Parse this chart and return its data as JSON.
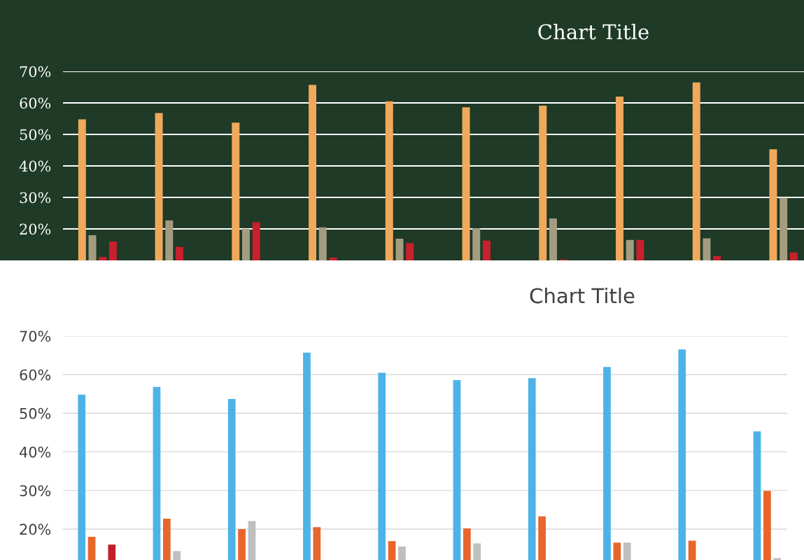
{
  "chart_data": [
    {
      "type": "bar",
      "title": "Chart Title",
      "categories": [
        null,
        null,
        null,
        null,
        null,
        null,
        null,
        null,
        null,
        null
      ],
      "ylim": [
        10,
        70
      ],
      "yticks": [
        {
          "value": 20,
          "label": "20%"
        },
        {
          "value": 30,
          "label": "30%"
        },
        {
          "value": 40,
          "label": "40%"
        },
        {
          "value": 50,
          "label": "50%"
        },
        {
          "value": 60,
          "label": "60%"
        },
        {
          "value": 70,
          "label": "70%"
        }
      ],
      "grid": "y",
      "series": [
        {
          "color": "#f0a85c",
          "values": [
            54.8,
            56.8,
            53.7,
            65.7,
            60.5,
            58.6,
            59.1,
            62.0,
            66.5,
            45.3
          ]
        },
        {
          "color": "#a39c80",
          "values": [
            18.0,
            22.7,
            20.0,
            20.5,
            16.9,
            20.2,
            23.3,
            16.5,
            17.0,
            29.9
          ]
        },
        {
          "color": "#c8202c",
          "values": [
            11.1,
            14.3,
            22.1,
            10.9,
            15.5,
            16.3,
            10.3,
            16.5,
            11.4,
            12.5
          ]
        },
        {
          "color": "#c8202c",
          "values": [
            16.0,
            null,
            null,
            null,
            null,
            null,
            null,
            null,
            null,
            null
          ]
        }
      ]
    },
    {
      "type": "bar",
      "title": "Chart Title",
      "categories": [
        null,
        null,
        null,
        null,
        null,
        null,
        null,
        null,
        null,
        null
      ],
      "ylim": [
        12.0,
        70
      ],
      "yticks": [
        {
          "value": 20,
          "label": "20%"
        },
        {
          "value": 30,
          "label": "30%"
        },
        {
          "value": 40,
          "label": "40%"
        },
        {
          "value": 50,
          "label": "50%"
        },
        {
          "value": 60,
          "label": "60%"
        },
        {
          "value": 70,
          "label": "70%"
        }
      ],
      "grid": "y",
      "series": [
        {
          "color": "#4db3e6",
          "values": [
            54.8,
            56.8,
            53.7,
            65.7,
            60.5,
            58.6,
            59.1,
            62.0,
            66.5,
            45.3
          ]
        },
        {
          "color": "#e8662c",
          "values": [
            18.0,
            22.7,
            20.0,
            20.5,
            16.9,
            20.2,
            23.3,
            16.5,
            17.0,
            29.9
          ]
        },
        {
          "color": "#bfbfbf",
          "values": [
            null,
            14.3,
            22.1,
            null,
            15.5,
            16.3,
            null,
            16.5,
            null,
            12.5
          ]
        },
        {
          "color": "#c0202a",
          "values": [
            16.0,
            null,
            null,
            null,
            null,
            null,
            null,
            null,
            null,
            null
          ]
        }
      ]
    }
  ]
}
